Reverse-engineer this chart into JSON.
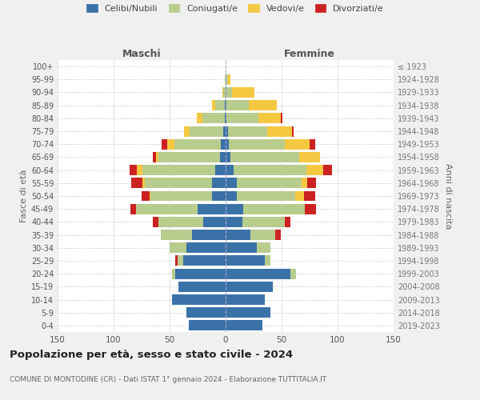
{
  "age_groups": [
    "0-4",
    "5-9",
    "10-14",
    "15-19",
    "20-24",
    "25-29",
    "30-34",
    "35-39",
    "40-44",
    "45-49",
    "50-54",
    "55-59",
    "60-64",
    "65-69",
    "70-74",
    "75-79",
    "80-84",
    "85-89",
    "90-94",
    "95-99",
    "100+"
  ],
  "birth_years": [
    "2019-2023",
    "2014-2018",
    "2009-2013",
    "2004-2008",
    "1999-2003",
    "1994-1998",
    "1989-1993",
    "1984-1988",
    "1979-1983",
    "1974-1978",
    "1969-1973",
    "1964-1968",
    "1959-1963",
    "1954-1958",
    "1949-1953",
    "1944-1948",
    "1939-1943",
    "1934-1938",
    "1929-1933",
    "1924-1928",
    "≤ 1923"
  ],
  "colors": {
    "celibi": "#3a72a8",
    "coniugati": "#b8cc8e",
    "vedovi": "#f5c842",
    "divorziati": "#cc2222"
  },
  "males": {
    "celibi": [
      33,
      35,
      48,
      42,
      45,
      38,
      35,
      30,
      20,
      25,
      12,
      12,
      9,
      5,
      4,
      2,
      1,
      1,
      0,
      0,
      0
    ],
    "coniugati": [
      0,
      0,
      0,
      0,
      3,
      5,
      15,
      28,
      40,
      55,
      55,
      60,
      65,
      55,
      42,
      30,
      20,
      8,
      2,
      1,
      0
    ],
    "vedovi": [
      0,
      0,
      0,
      0,
      0,
      0,
      0,
      0,
      0,
      0,
      1,
      2,
      5,
      2,
      6,
      5,
      5,
      3,
      1,
      0,
      0
    ],
    "divorziati": [
      0,
      0,
      0,
      0,
      0,
      2,
      0,
      0,
      5,
      5,
      7,
      10,
      7,
      3,
      5,
      0,
      0,
      0,
      0,
      0,
      0
    ]
  },
  "females": {
    "celibi": [
      33,
      40,
      35,
      42,
      58,
      35,
      28,
      22,
      15,
      16,
      10,
      10,
      7,
      4,
      3,
      2,
      1,
      1,
      1,
      0,
      0
    ],
    "coniugati": [
      0,
      0,
      0,
      0,
      5,
      5,
      12,
      22,
      38,
      55,
      52,
      58,
      65,
      62,
      50,
      35,
      28,
      20,
      5,
      2,
      0
    ],
    "vedovi": [
      0,
      0,
      0,
      0,
      0,
      0,
      0,
      0,
      0,
      0,
      8,
      5,
      15,
      18,
      22,
      22,
      20,
      25,
      20,
      2,
      0
    ],
    "divorziati": [
      0,
      0,
      0,
      0,
      0,
      0,
      0,
      5,
      5,
      10,
      10,
      8,
      8,
      0,
      5,
      2,
      2,
      0,
      0,
      0,
      0
    ]
  },
  "title": "Popolazione per età, sesso e stato civile - 2024",
  "subtitle": "COMUNE DI MONTODINE (CR) - Dati ISTAT 1° gennaio 2024 - Elaborazione TUTTITALIA.IT",
  "xlabel_left": "Maschi",
  "xlabel_right": "Femmine",
  "ylabel_left": "Fasce di età",
  "ylabel_right": "Anni di nascita",
  "xlim": 150,
  "bg_color": "#f0f0f0",
  "plot_bg": "#ffffff",
  "legend_labels": [
    "Celibi/Nubili",
    "Coniugati/e",
    "Vedovi/e",
    "Divorziati/e"
  ]
}
